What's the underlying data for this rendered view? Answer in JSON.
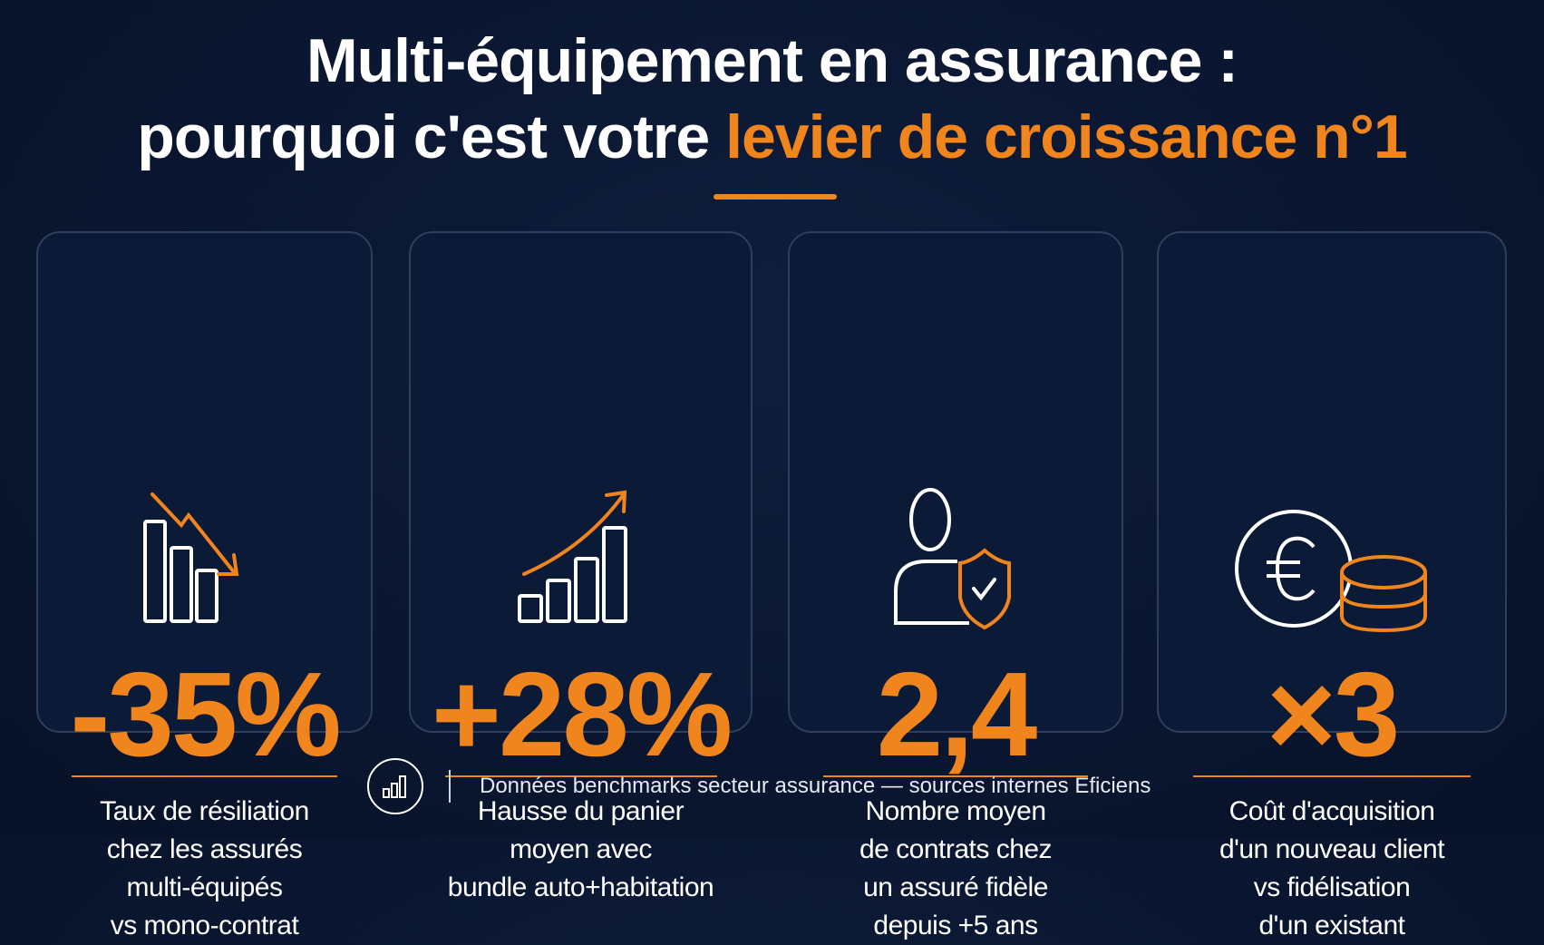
{
  "title": {
    "line1": "Multi-équipement en assurance :",
    "line2_prefix": "pourquoi c'est votre ",
    "line2_accent": "levier de croissance n°1"
  },
  "colors": {
    "accent": "#f0851e",
    "background": "#0a1630",
    "card_border": "#2e3f5e"
  },
  "cards": [
    {
      "icon": "bar-chart-down-icon",
      "value": "-35%",
      "description": [
        "Taux de résiliation",
        "chez les assurés",
        "multi-équipés",
        "vs mono-contrat"
      ]
    },
    {
      "icon": "bar-chart-up-icon",
      "value": "+28%",
      "description": [
        "Hausse du panier",
        "moyen avec",
        "bundle auto+habitation"
      ]
    },
    {
      "icon": "user-shield-icon",
      "value": "2,4",
      "description": [
        "Nombre moyen",
        "de contrats chez",
        "un assuré fidèle",
        "depuis +5 ans"
      ]
    },
    {
      "icon": "euro-coins-icon",
      "value": "×3",
      "description": [
        "Coût d'acquisition",
        "d'un nouveau client",
        "vs fidélisation",
        "d'un existant"
      ]
    }
  ],
  "footer": {
    "icon": "bar-chart-circle-icon",
    "text": "Données benchmarks secteur assurance — sources internes Eficiens"
  }
}
